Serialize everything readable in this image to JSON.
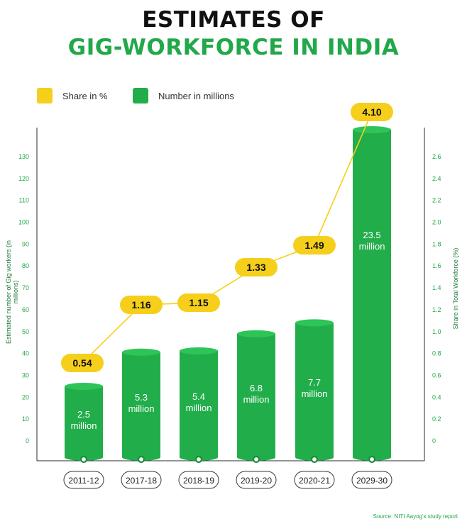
{
  "header": {
    "title_line1": "ESTIMATES OF",
    "title_line2": "GIG-WORKFORCE IN INDIA"
  },
  "legend": {
    "share_label": "Share in %",
    "number_label": "Number in millions"
  },
  "source": "Source: NITI Aayog's study report",
  "colors": {
    "bar": "#22ad4b",
    "bar_top": "#2ec457",
    "share_line": "#f5cf1b",
    "title_green": "#22a84a"
  },
  "chart_data": {
    "type": "bar",
    "categories": [
      "2011-12",
      "2017-18",
      "2018-19",
      "2019-20",
      "2020-21",
      "2029-30"
    ],
    "series": [
      {
        "name": "Number in millions",
        "values": [
          2.5,
          5.3,
          5.4,
          6.8,
          7.7,
          23.5
        ],
        "labels": [
          "2.5",
          "5.3",
          "5.4",
          "6.8",
          "7.7",
          "23.5"
        ],
        "unit": "million",
        "axis": "left"
      },
      {
        "name": "Share in %",
        "values": [
          0.54,
          1.16,
          1.15,
          1.33,
          1.49,
          4.1
        ],
        "labels": [
          "0.54",
          "1.16",
          "1.15",
          "1.33",
          "1.49",
          "4.10"
        ],
        "axis": "right"
      }
    ],
    "ylabel_left": "Estimated number of Gig workers (in millions)",
    "ylabel_right": "Share in Total Workforce (%)",
    "yticks_left": [
      "0",
      "10",
      "20",
      "30",
      "40",
      "50",
      "60",
      "70",
      "80",
      "90",
      "100",
      "110",
      "120",
      "130"
    ],
    "yticks_right": [
      "0",
      "0.2",
      "0.4",
      "0.6",
      "0.8",
      "1.0",
      "1.2",
      "1.4",
      "1.6",
      "1.8",
      "2.0",
      "2.2",
      "2.4",
      "2.6"
    ],
    "grid": false,
    "legend_position": "top-left"
  }
}
